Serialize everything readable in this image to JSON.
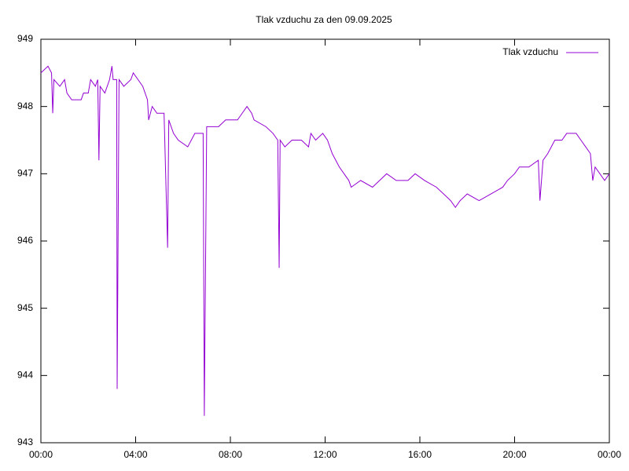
{
  "chart_data": {
    "type": "line",
    "title": "Tlak vzduchu za den 09.09.2025",
    "x": [
      0,
      0.3,
      0.45,
      0.5,
      0.55,
      0.8,
      1.0,
      1.1,
      1.3,
      1.7,
      1.8,
      2.0,
      2.1,
      2.3,
      2.4,
      2.45,
      2.5,
      2.7,
      2.9,
      3.0,
      3.05,
      3.2,
      3.22,
      3.3,
      3.5,
      3.8,
      3.9,
      4.1,
      4.3,
      4.5,
      4.55,
      4.7,
      4.9,
      5.2,
      5.35,
      5.4,
      5.6,
      5.8,
      6.2,
      6.5,
      6.85,
      6.9,
      7.0,
      7.5,
      7.8,
      8.3,
      8.5,
      8.7,
      8.9,
      9.0,
      9.5,
      9.8,
      10.0,
      10.06,
      10.1,
      10.3,
      10.6,
      11.0,
      11.3,
      11.4,
      11.6,
      11.9,
      12.1,
      12.3,
      12.6,
      12.8,
      13.0,
      13.1,
      13.5,
      14.0,
      14.3,
      14.6,
      15.0,
      15.5,
      15.8,
      16.2,
      16.7,
      17.0,
      17.3,
      17.5,
      17.7,
      18.0,
      18.5,
      19.0,
      19.5,
      19.7,
      20.0,
      20.2,
      20.6,
      21.0,
      21.07,
      21.2,
      21.4,
      21.7,
      22.0,
      22.2,
      22.6,
      22.8,
      23.0,
      23.2,
      23.3,
      23.4,
      23.6,
      23.8,
      24.0
    ],
    "series": [
      {
        "name": "Tlak vzduchu",
        "color": "#9400d3",
        "values": [
          948.5,
          948.6,
          948.5,
          947.9,
          948.4,
          948.3,
          948.4,
          948.2,
          948.1,
          948.1,
          948.2,
          948.2,
          948.4,
          948.3,
          948.4,
          947.2,
          948.3,
          948.2,
          948.4,
          948.6,
          948.4,
          948.4,
          943.8,
          948.4,
          948.3,
          948.4,
          948.5,
          948.4,
          948.3,
          948.1,
          947.8,
          948.0,
          947.9,
          947.9,
          945.9,
          947.8,
          947.6,
          947.5,
          947.4,
          947.6,
          947.6,
          943.4,
          947.7,
          947.7,
          947.8,
          947.8,
          947.9,
          948.0,
          947.9,
          947.8,
          947.7,
          947.6,
          947.5,
          945.6,
          947.5,
          947.4,
          947.5,
          947.5,
          947.4,
          947.6,
          947.5,
          947.6,
          947.5,
          947.3,
          947.1,
          947.0,
          946.9,
          946.8,
          946.9,
          946.8,
          946.9,
          947.0,
          946.9,
          946.9,
          947.0,
          946.9,
          946.8,
          946.7,
          946.6,
          946.5,
          946.6,
          946.7,
          946.6,
          946.7,
          946.8,
          946.9,
          947.0,
          947.1,
          947.1,
          947.2,
          946.6,
          947.2,
          947.3,
          947.5,
          947.5,
          947.6,
          947.6,
          947.5,
          947.4,
          947.3,
          946.9,
          947.1,
          947.0,
          946.9,
          947.0
        ]
      }
    ],
    "xlim": [
      0,
      24
    ],
    "xticks": [
      {
        "value": 0,
        "label": "00:00"
      },
      {
        "value": 4,
        "label": "04:00"
      },
      {
        "value": 8,
        "label": "08:00"
      },
      {
        "value": 12,
        "label": "12:00"
      },
      {
        "value": 16,
        "label": "16:00"
      },
      {
        "value": 20,
        "label": "20:00"
      },
      {
        "value": 24,
        "label": "00:00"
      }
    ],
    "ylim": [
      943,
      949
    ],
    "yticks": [
      943,
      944,
      945,
      946,
      947,
      948,
      949
    ],
    "legend": "top-right"
  }
}
